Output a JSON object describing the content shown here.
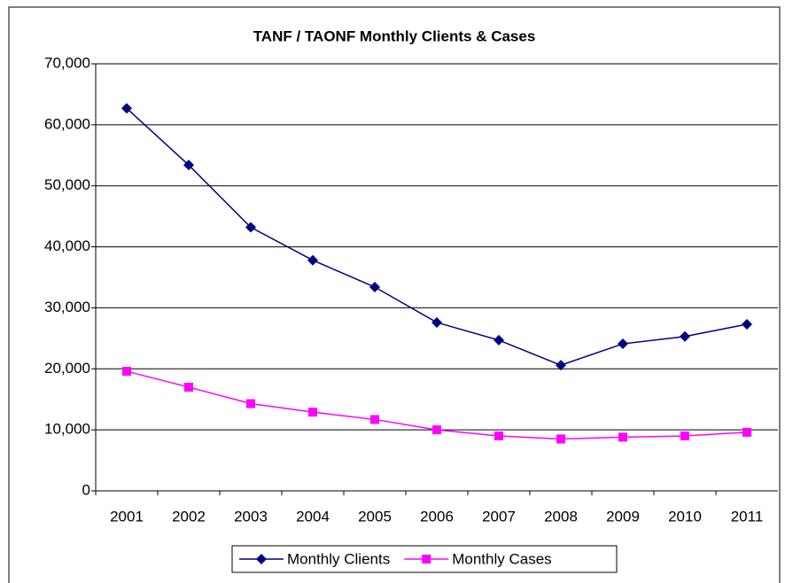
{
  "chart_data": {
    "type": "line",
    "title": "TANF / TAONF Monthly Clients & Cases",
    "categories": [
      "2001",
      "2002",
      "2003",
      "2004",
      "2005",
      "2006",
      "2007",
      "2008",
      "2009",
      "2010",
      "2011"
    ],
    "series": [
      {
        "name": "Monthly Clients",
        "color": "#000080",
        "marker": "diamond",
        "values": [
          62700,
          53400,
          43200,
          37800,
          33400,
          27600,
          24700,
          20600,
          24100,
          25300,
          27300
        ]
      },
      {
        "name": "Monthly Cases",
        "color": "#ff00ff",
        "marker": "square",
        "values": [
          19600,
          17000,
          14300,
          12900,
          11700,
          10000,
          9000,
          8500,
          8800,
          9000,
          9600
        ]
      }
    ],
    "ylim": [
      0,
      70000
    ],
    "yticks": [
      0,
      {
        "value": 10000,
        "label": "10,000"
      },
      {
        "value": 20000,
        "label": "20,000"
      },
      {
        "value": 30000,
        "label": "30,000"
      },
      {
        "value": 40000,
        "label": "40,000"
      },
      {
        "value": 50000,
        "label": "50,000"
      },
      {
        "value": 60000,
        "label": "60,000"
      },
      {
        "value": 70000,
        "label": "70,000"
      }
    ],
    "grid": true,
    "legend": "bottom"
  }
}
